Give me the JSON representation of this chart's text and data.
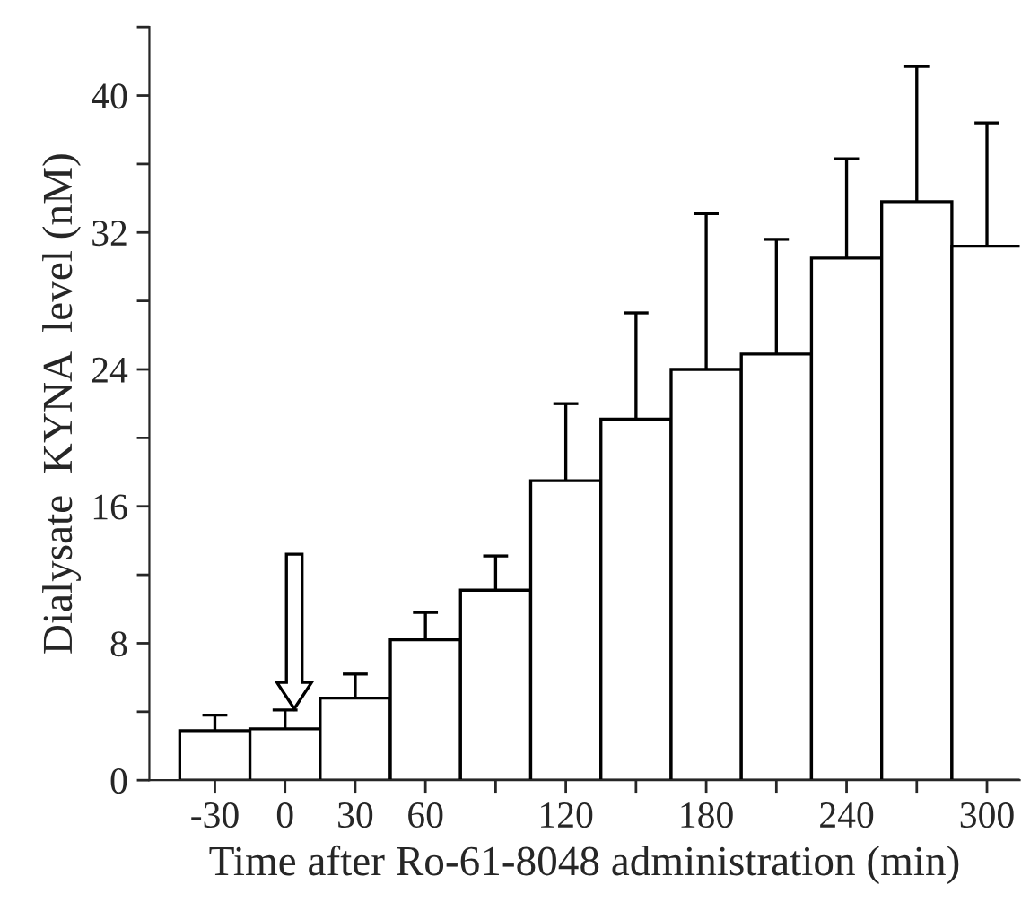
{
  "chart_data": {
    "type": "bar",
    "xlabel": "Time after Ro-61-8048 administration (min)",
    "ylabel": "Dialysate  KYNA  level (nM)",
    "x": [
      -30,
      0,
      30,
      60,
      90,
      120,
      150,
      180,
      210,
      240,
      270,
      300
    ],
    "series": [
      {
        "color": "#ffffff",
        "values": [
          2.9,
          3.0,
          4.8,
          8.2,
          11.1,
          17.5,
          21.1,
          24.0,
          24.9,
          30.5,
          33.8,
          31.2
        ],
        "errors": [
          0.9,
          1.1,
          1.4,
          1.6,
          2.0,
          4.5,
          6.2,
          9.1,
          6.7,
          5.8,
          7.9,
          7.2
        ]
      }
    ],
    "xlim": [
      -58,
      314
    ],
    "ylim": [
      0,
      44
    ],
    "xticks": [
      -30,
      0,
      30,
      60,
      {
        "value": 90,
        "label": null
      },
      120,
      {
        "value": 150,
        "label": null
      },
      180,
      {
        "value": 210,
        "label": null
      },
      240,
      {
        "value": 270,
        "label": null
      },
      300
    ],
    "yticks": [
      0,
      {
        "value": 4,
        "label": null
      },
      8,
      {
        "value": 12,
        "label": null
      },
      16,
      {
        "value": 20,
        "label": null
      },
      24,
      {
        "value": 28,
        "label": null
      },
      32,
      {
        "value": 36,
        "label": null
      },
      40,
      {
        "value": 44,
        "label": null
      }
    ],
    "grid": false,
    "legend": false
  }
}
